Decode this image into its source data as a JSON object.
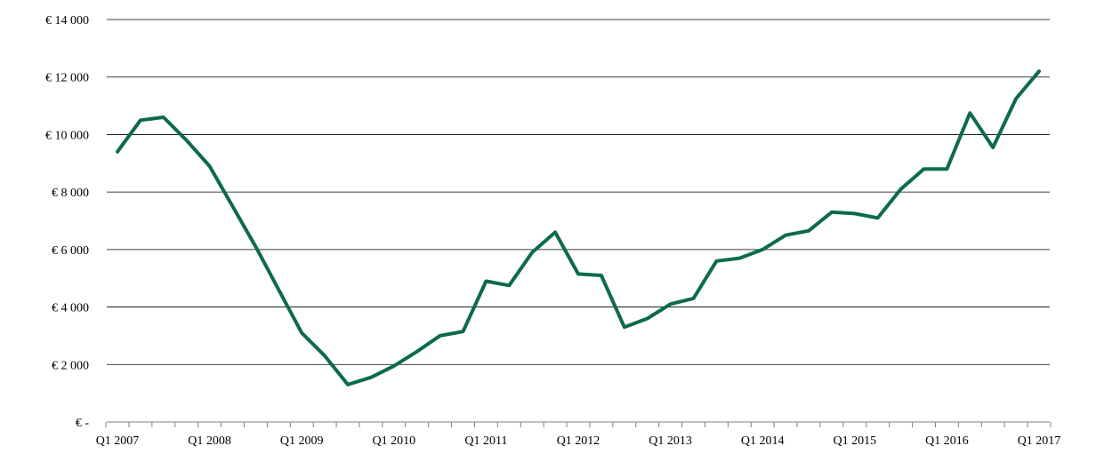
{
  "chart_data": {
    "type": "line",
    "title": "",
    "xlabel": "",
    "ylabel": "",
    "ylim": [
      0,
      14000
    ],
    "grid": true,
    "colors": {
      "series": "#0b6b4a",
      "grid": "#000000",
      "axis": "#7f7f7f"
    },
    "y_ticks": [
      {
        "value": 0,
        "label": "€ -"
      },
      {
        "value": 2000,
        "label": "€ 2 000"
      },
      {
        "value": 4000,
        "label": "€ 4 000"
      },
      {
        "value": 6000,
        "label": "€ 6 000"
      },
      {
        "value": 8000,
        "label": "€ 8 000"
      },
      {
        "value": 10000,
        "label": "€ 10 000"
      },
      {
        "value": 12000,
        "label": "€ 12 000"
      },
      {
        "value": 14000,
        "label": "€ 14 000"
      }
    ],
    "x_labels": [
      {
        "index": 0,
        "label": "Q1 2007"
      },
      {
        "index": 4,
        "label": "Q1 2008"
      },
      {
        "index": 8,
        "label": "Q1 2009"
      },
      {
        "index": 12,
        "label": "Q1 2010"
      },
      {
        "index": 16,
        "label": "Q1 2011"
      },
      {
        "index": 20,
        "label": "Q1 2012"
      },
      {
        "index": 24,
        "label": "Q1 2013"
      },
      {
        "index": 28,
        "label": "Q1 2014"
      },
      {
        "index": 32,
        "label": "Q1 2015"
      },
      {
        "index": 36,
        "label": "Q1 2016"
      },
      {
        "index": 40,
        "label": "Q1 2017"
      }
    ],
    "series": [
      {
        "values": [
          9400,
          10500,
          10600,
          9800,
          8900,
          7500,
          6100,
          4600,
          3100,
          2300,
          1300,
          1550,
          1950,
          2450,
          3000,
          3150,
          4900,
          4750,
          5900,
          6600,
          5150,
          5100,
          3300,
          3600,
          4100,
          4300,
          5600,
          5700,
          6000,
          6500,
          6650,
          7300,
          7250,
          7100,
          8100,
          8800,
          8800,
          10750,
          9550,
          11250,
          12200
        ]
      }
    ]
  }
}
